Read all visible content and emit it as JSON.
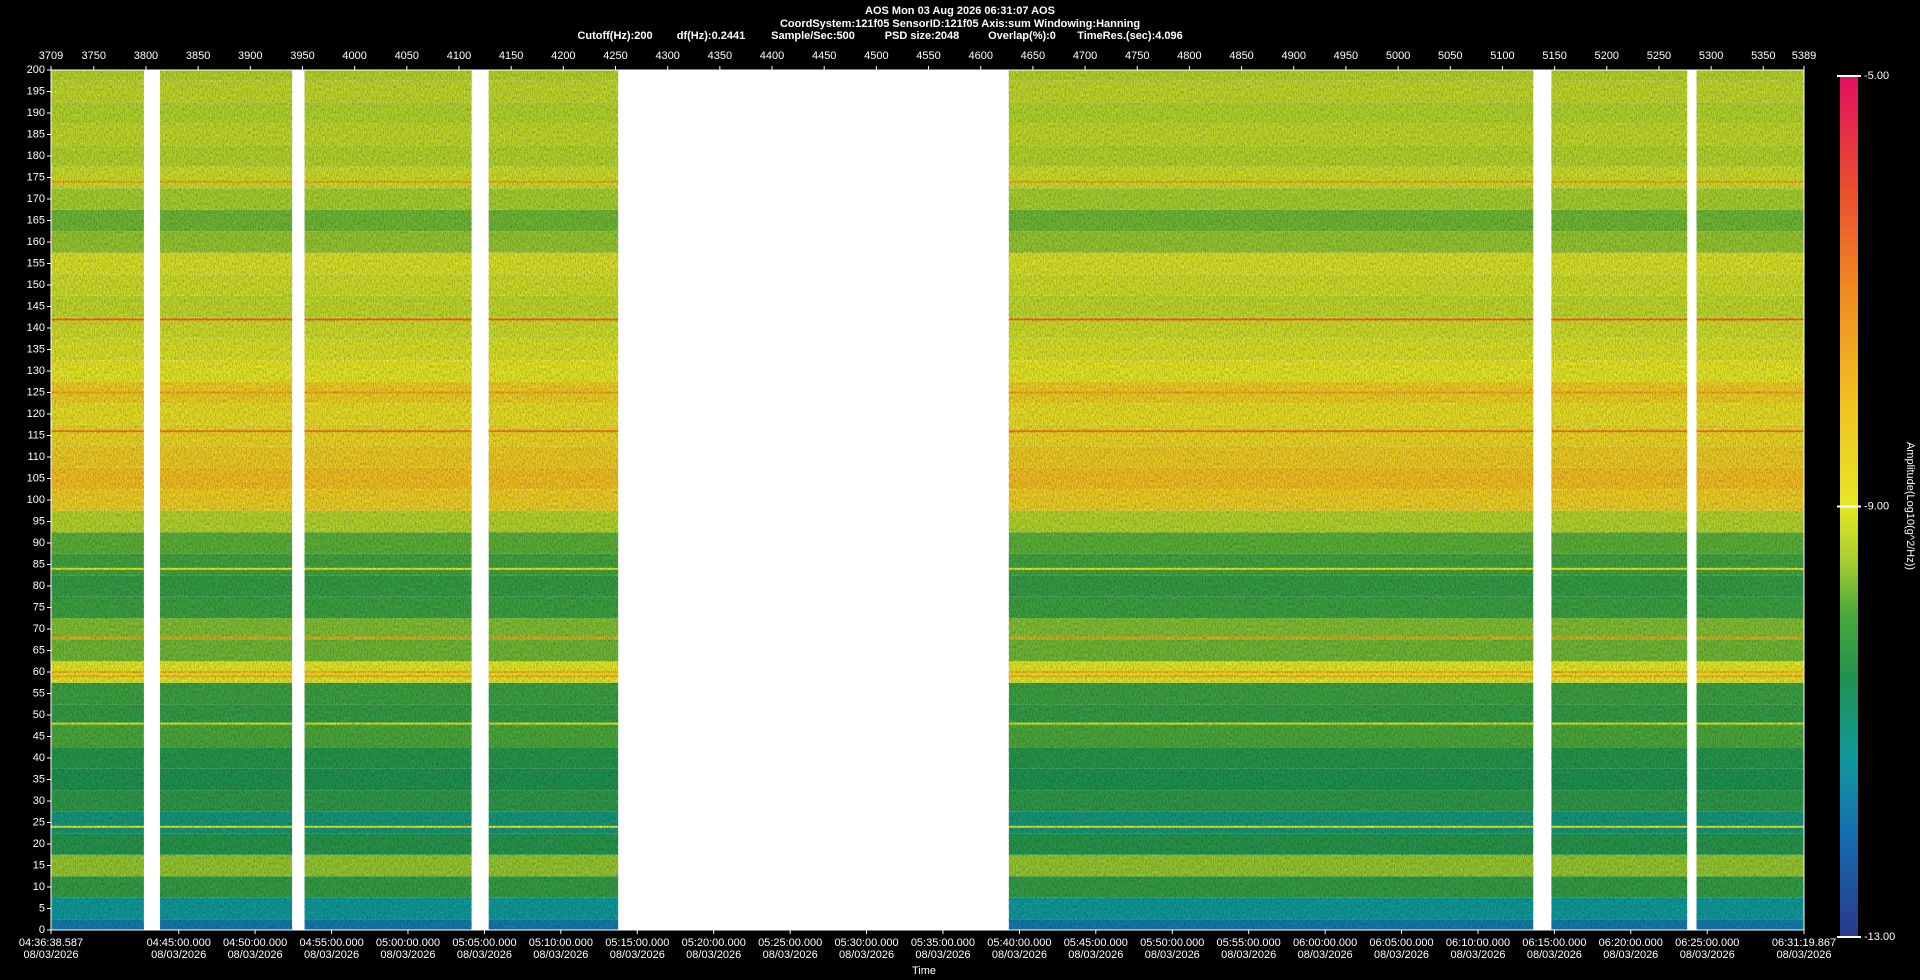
{
  "chart_data": {
    "type": "spectrogram",
    "header": [
      "AOS  Mon 03 Aug 2026 06:31:07  AOS",
      "CoordSystem:121f05   SensorID:121f05   Axis:sum   Windowing:Hanning"
    ],
    "parameters": [
      "Cutoff(Hz):200",
      "df(Hz):0.2441",
      "Sample/Sec:500",
      "PSD size:2048",
      "Overlap(%):0",
      "TimeRes.(sec):4.096"
    ],
    "x_label": "Time",
    "colorbar_label": "Amplitude(Log10(g^2/Hz))",
    "xlim": [
      3709,
      5389
    ],
    "xticks": [
      3709,
      3750,
      3800,
      3850,
      3900,
      3950,
      4000,
      4050,
      4100,
      4150,
      4200,
      4250,
      4300,
      4350,
      4400,
      4450,
      4500,
      4550,
      4600,
      4650,
      4700,
      4750,
      4800,
      4850,
      4900,
      4950,
      5000,
      5050,
      5100,
      5150,
      5200,
      5250,
      5300,
      5350,
      5389
    ],
    "time_ticks": [
      {
        "value": 3709,
        "label": "04:36:38.587",
        "date": "08/03/2026"
      },
      {
        "value": 3831.4,
        "label": "04:45:00.000",
        "date": "08/03/2026"
      },
      {
        "value": 3904.6,
        "label": "04:50:00.000",
        "date": "08/03/2026"
      },
      {
        "value": 3977.9,
        "label": "04:55:00.000",
        "date": "08/03/2026"
      },
      {
        "value": 4051.1,
        "label": "05:00:00.000",
        "date": "08/03/2026"
      },
      {
        "value": 4124.4,
        "label": "05:05:00.000",
        "date": "08/03/2026"
      },
      {
        "value": 4197.6,
        "label": "05:10:00.000",
        "date": "08/03/2026"
      },
      {
        "value": 4270.9,
        "label": "05:15:00.000",
        "date": "08/03/2026"
      },
      {
        "value": 4344.1,
        "label": "05:20:00.000",
        "date": "08/03/2026"
      },
      {
        "value": 4417.4,
        "label": "05:25:00.000",
        "date": "08/03/2026"
      },
      {
        "value": 4490.6,
        "label": "05:30:00.000",
        "date": "08/03/2026"
      },
      {
        "value": 4563.8,
        "label": "05:35:00.000",
        "date": "08/03/2026"
      },
      {
        "value": 4637.1,
        "label": "05:40:00.000",
        "date": "08/03/2026"
      },
      {
        "value": 4710.3,
        "label": "05:45:00.000",
        "date": "08/03/2026"
      },
      {
        "value": 4783.6,
        "label": "05:50:00.000",
        "date": "08/03/2026"
      },
      {
        "value": 4856.8,
        "label": "05:55:00.000",
        "date": "08/03/2026"
      },
      {
        "value": 4930.1,
        "label": "06:00:00.000",
        "date": "08/03/2026"
      },
      {
        "value": 5003.3,
        "label": "06:05:00.000",
        "date": "08/03/2026"
      },
      {
        "value": 5076.6,
        "label": "06:10:00.000",
        "date": "08/03/2026"
      },
      {
        "value": 5149.8,
        "label": "06:15:00.000",
        "date": "08/03/2026"
      },
      {
        "value": 5223.0,
        "label": "06:20:00.000",
        "date": "08/03/2026"
      },
      {
        "value": 5296.3,
        "label": "06:25:00.000",
        "date": "08/03/2026"
      },
      {
        "value": 5389,
        "label": "06:31:19.867",
        "date": "08/03/2026"
      }
    ],
    "ylim": [
      0,
      200
    ],
    "yticks": [
      0,
      5,
      10,
      15,
      20,
      25,
      30,
      35,
      40,
      45,
      50,
      55,
      60,
      65,
      70,
      75,
      80,
      85,
      90,
      95,
      100,
      105,
      110,
      115,
      120,
      125,
      130,
      135,
      140,
      145,
      150,
      155,
      160,
      165,
      170,
      175,
      180,
      185,
      190,
      195,
      200
    ],
    "segments": [
      [
        3709,
        3798
      ],
      [
        3813.5,
        3940
      ],
      [
        3952,
        4112
      ],
      [
        4128.5,
        4252.5
      ],
      [
        4627,
        5129.5
      ],
      [
        5147,
        5277
      ],
      [
        5286,
        5389
      ]
    ],
    "frequencies": [
      0,
      5,
      10,
      15,
      20,
      25,
      30,
      35,
      40,
      45,
      50,
      55,
      60,
      65,
      70,
      75,
      80,
      85,
      90,
      95,
      100,
      105,
      110,
      115,
      120,
      125,
      130,
      135,
      140,
      145,
      150,
      155,
      160,
      165,
      170,
      175,
      180,
      185,
      190,
      195,
      200
    ],
    "profile": [
      -11.8,
      -11.3,
      -10.3,
      -9.6,
      -10.5,
      -11.0,
      -10.4,
      -10.6,
      -10.5,
      -10.0,
      -10.3,
      -10.2,
      -9.0,
      -9.8,
      -9.7,
      -10.2,
      -10.3,
      -10.1,
      -9.9,
      -9.4,
      -8.4,
      -8.0,
      -8.3,
      -8.6,
      -8.8,
      -8.4,
      -9.0,
      -9.1,
      -9.2,
      -9.3,
      -9.2,
      -9.1,
      -9.6,
      -9.8,
      -9.5,
      -9.2,
      -9.4,
      -9.3,
      -9.4,
      -9.3,
      -9.4
    ],
    "lines": [
      {
        "frequency": 174,
        "amplitude": -7.5
      },
      {
        "frequency": 142,
        "amplitude": -6.5
      },
      {
        "frequency": 125,
        "amplitude": -7.5
      },
      {
        "frequency": 116,
        "amplitude": -6.8
      },
      {
        "frequency": 84,
        "amplitude": -9
      },
      {
        "frequency": 68,
        "amplitude": -7.5
      },
      {
        "frequency": 60,
        "amplitude": -7.8
      },
      {
        "frequency": 59,
        "amplitude": -7.8
      },
      {
        "frequency": 48,
        "amplitude": -9
      },
      {
        "frequency": 24,
        "amplitude": -9
      }
    ],
    "clim": [
      -13,
      -5
    ],
    "cticks": [
      {
        "value": -5,
        "label": "-5.00"
      },
      {
        "value": -9,
        "label": "-9.00"
      },
      {
        "value": -13,
        "label": "-13.00"
      }
    ],
    "colorscale": [
      [
        -13,
        "#283a8c"
      ],
      [
        -12,
        "#1470b0"
      ],
      [
        -11.3,
        "#109a9a"
      ],
      [
        -10.6,
        "#1f9250"
      ],
      [
        -10,
        "#4aa83a"
      ],
      [
        -9.5,
        "#a6cf2e"
      ],
      [
        -9,
        "#e6e626"
      ],
      [
        -8,
        "#f2c022"
      ],
      [
        -7,
        "#f28a20"
      ],
      [
        -6,
        "#ea4a30"
      ],
      [
        -5,
        "#e0105e"
      ]
    ]
  }
}
